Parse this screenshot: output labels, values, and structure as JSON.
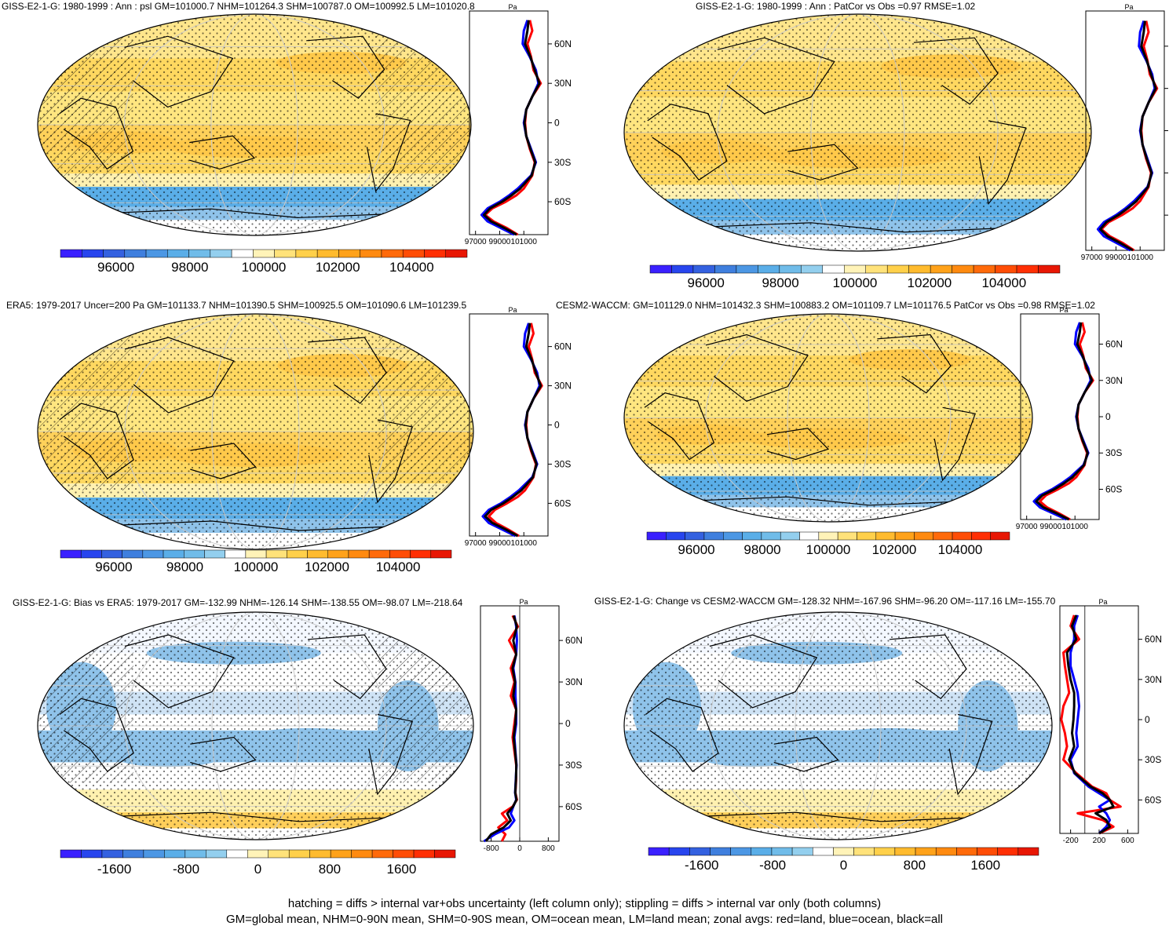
{
  "figure": {
    "notes": [
      "hatching = diffs > internal var+obs uncertainty (left column only); stippling = diffs > internal var only (both columns)",
      "GM=global mean, NHM=0-90N mean, SHM=0-90S mean, OM=ocean mean, LM=land mean; zonal avgs: red=land, blue=ocean, black=all"
    ],
    "profile_unit": "Pa"
  },
  "chart_data": [
    {
      "type": "heatmap",
      "title": "GISS-E2-1-G: 1980-1999 : Ann : psl GM=101000.7 NHM=101264.3 SHM=100787.0 OM=100992.5 LM=101020.8",
      "colorbar_ticks": [
        "96000",
        "98000",
        "100000",
        "102000",
        "104000"
      ],
      "colorbar_range": [
        94500,
        105500
      ],
      "hatching": true,
      "stippling": true,
      "zonal_profile": {
        "ylabels": [
          "60N",
          "30N",
          "0",
          "30S",
          "60S"
        ],
        "xlabels": [
          "97000",
          "99000",
          "101000"
        ],
        "xlim": [
          96500,
          103000
        ],
        "lat": [
          78,
          70,
          60,
          50,
          40,
          30,
          20,
          10,
          0,
          -10,
          -20,
          -30,
          -40,
          -50,
          -55,
          -60,
          -65,
          -70,
          -75,
          -80,
          -85
        ],
        "land": [
          101500,
          101700,
          101300,
          101600,
          101800,
          102400,
          101700,
          101200,
          101100,
          101200,
          101500,
          101900,
          101700,
          101000,
          100400,
          99500,
          98400,
          97800,
          98500,
          99600,
          100500
        ],
        "ocean": [
          101300,
          101000,
          100900,
          101500,
          102000,
          102200,
          101700,
          101200,
          101000,
          101200,
          101600,
          102000,
          101600,
          100500,
          99800,
          99000,
          98000,
          97500,
          98000,
          99100,
          100200
        ],
        "all": [
          101400,
          101300,
          101100,
          101550,
          101900,
          102300,
          101700,
          101200,
          101050,
          101200,
          101550,
          101950,
          101650,
          100700,
          100000,
          99200,
          98200,
          97700,
          98300,
          99400,
          100400
        ]
      }
    },
    {
      "type": "heatmap",
      "title": "GISS-E2-1-G: 1980-1999 : Ann : PatCor vs Obs =0.97 RMSE=1.02",
      "colorbar_ticks": [
        "96000",
        "98000",
        "100000",
        "102000",
        "104000"
      ],
      "colorbar_range": [
        94500,
        105500
      ],
      "hatching": false,
      "stippling": true,
      "zonal_profile": {
        "ylabels": [],
        "xlabels": [
          "97000",
          "99000",
          "101000"
        ],
        "xlim": [
          96500,
          103000
        ],
        "lat": [
          78,
          70,
          60,
          50,
          40,
          30,
          20,
          10,
          0,
          -10,
          -20,
          -30,
          -40,
          -50,
          -55,
          -60,
          -65,
          -70,
          -75,
          -80,
          -85
        ],
        "land": [
          101500,
          101700,
          101300,
          101600,
          101800,
          102400,
          101700,
          101200,
          101100,
          101200,
          101500,
          101900,
          101700,
          101000,
          100400,
          99500,
          98400,
          97800,
          98500,
          99600,
          100500
        ],
        "ocean": [
          101300,
          101000,
          100900,
          101500,
          102000,
          102200,
          101700,
          101200,
          101000,
          101200,
          101600,
          102000,
          101600,
          100500,
          99800,
          99000,
          98000,
          97500,
          98000,
          99100,
          100200
        ],
        "all": [
          101400,
          101300,
          101100,
          101550,
          101900,
          102300,
          101700,
          101200,
          101050,
          101200,
          101550,
          101950,
          101650,
          100700,
          100000,
          99200,
          98200,
          97700,
          98300,
          99400,
          100400
        ]
      }
    },
    {
      "type": "heatmap",
      "title": "ERA5: 1979-2017 Uncer=200 Pa GM=101133.7 NHM=101390.5 SHM=100925.5 OM=101090.6 LM=101239.5",
      "colorbar_ticks": [
        "96000",
        "98000",
        "100000",
        "102000",
        "104000"
      ],
      "colorbar_range": [
        94500,
        105500
      ],
      "hatching": true,
      "stippling": true,
      "zonal_profile": {
        "ylabels": [
          "60N",
          "30N",
          "0",
          "30S",
          "60S"
        ],
        "xlabels": [
          "97000",
          "99000",
          "101000"
        ],
        "xlim": [
          96500,
          103000
        ],
        "lat": [
          78,
          70,
          60,
          50,
          40,
          30,
          20,
          10,
          0,
          -10,
          -20,
          -30,
          -40,
          -50,
          -55,
          -60,
          -65,
          -70,
          -75,
          -80,
          -85
        ],
        "land": [
          101600,
          101800,
          101400,
          101700,
          101900,
          102500,
          101800,
          101300,
          101200,
          101300,
          101600,
          102000,
          101800,
          101100,
          100500,
          99600,
          98600,
          98100,
          98700,
          99700,
          100600
        ],
        "ocean": [
          101400,
          101100,
          101000,
          101600,
          102100,
          102300,
          101800,
          101300,
          101100,
          101300,
          101700,
          102100,
          101700,
          100600,
          99900,
          99100,
          98100,
          97600,
          98100,
          99200,
          100300
        ],
        "all": [
          101500,
          101400,
          101200,
          101650,
          102000,
          102400,
          101800,
          101300,
          101150,
          101300,
          101650,
          102050,
          101750,
          100800,
          100100,
          99300,
          98300,
          97800,
          98400,
          99500,
          100500
        ]
      }
    },
    {
      "type": "heatmap",
      "title": "CESM2-WACCM: GM=101129.0 NHM=101432.3 SHM=100883.2 OM=101109.7 LM=101176.5 PatCor vs Obs =0.98 RMSE=1.02",
      "colorbar_ticks": [
        "96000",
        "98000",
        "100000",
        "102000",
        "104000"
      ],
      "colorbar_range": [
        94500,
        105500
      ],
      "hatching": false,
      "stippling": true,
      "zonal_profile": {
        "ylabels": [
          "60N",
          "30N",
          "0",
          "30S",
          "60S"
        ],
        "xlabels": [
          "97000",
          "99000",
          "101000"
        ],
        "xlim": [
          96500,
          103000
        ],
        "lat": [
          78,
          70,
          60,
          50,
          40,
          30,
          20,
          10,
          0,
          -10,
          -20,
          -30,
          -40,
          -50,
          -55,
          -60,
          -65,
          -70,
          -75,
          -80,
          -85
        ],
        "land": [
          101600,
          101800,
          101400,
          101700,
          101900,
          102500,
          101800,
          101300,
          101200,
          101300,
          101600,
          102000,
          101800,
          101100,
          100500,
          99600,
          98600,
          98100,
          98700,
          99700,
          100600
        ],
        "ocean": [
          101400,
          101100,
          101000,
          101600,
          102100,
          102300,
          101800,
          101300,
          101100,
          101300,
          101700,
          102100,
          101700,
          100600,
          99900,
          99100,
          98100,
          97600,
          98100,
          99200,
          100300
        ],
        "all": [
          101500,
          101400,
          101200,
          101650,
          102000,
          102400,
          101800,
          101300,
          101150,
          101300,
          101650,
          102050,
          101750,
          100800,
          100100,
          99300,
          98300,
          97800,
          98400,
          99500,
          100500
        ]
      }
    },
    {
      "type": "heatmap",
      "title": "GISS-E2-1-G: Bias vs ERA5: 1979-2017 GM=-132.99 NHM=-126.14 SHM=-138.55 OM=-98.07 LM=-218.64",
      "colorbar_ticks": [
        "-1600",
        "-800",
        "0",
        "800",
        "1600"
      ],
      "colorbar_range": [
        -2200,
        2200
      ],
      "hatching": true,
      "stippling": true,
      "zonal_profile": {
        "ylabels": [
          "60N",
          "30N",
          "0",
          "30S",
          "60S"
        ],
        "xlabels": [
          "-800",
          "0",
          "800"
        ],
        "xlim": [
          -1100,
          1100
        ],
        "lat": [
          78,
          70,
          60,
          50,
          40,
          30,
          20,
          10,
          0,
          -10,
          -20,
          -30,
          -40,
          -50,
          -55,
          -60,
          -65,
          -70,
          -75,
          -80,
          -85
        ],
        "land": [
          -200,
          -50,
          -300,
          -100,
          -250,
          -150,
          -250,
          -100,
          -150,
          -200,
          -150,
          -100,
          -100,
          -120,
          -80,
          -200,
          -500,
          -350,
          -600,
          -400,
          -500
        ],
        "ocean": [
          -150,
          -100,
          -80,
          -100,
          -180,
          -120,
          -120,
          -100,
          -100,
          -150,
          -120,
          -90,
          -110,
          -130,
          -100,
          -180,
          -250,
          -150,
          -300,
          -700,
          -1000
        ],
        "all": [
          -170,
          -80,
          -180,
          -100,
          -200,
          -130,
          -180,
          -100,
          -120,
          -170,
          -130,
          -95,
          -105,
          -125,
          -90,
          -190,
          -350,
          -250,
          -450,
          -800,
          -950
        ]
      }
    },
    {
      "type": "heatmap",
      "title": "GISS-E2-1-G: Change vs CESM2-WACCM GM=-128.32 NHM=-167.96 SHM=-96.20 OM=-117.16 LM=-155.70",
      "colorbar_ticks": [
        "-1600",
        "-800",
        "0",
        "800",
        "1600"
      ],
      "colorbar_range": [
        -2200,
        2200
      ],
      "hatching": false,
      "stippling": true,
      "zonal_profile": {
        "ylabels": [
          "60N",
          "30N",
          "0",
          "30S",
          "60S"
        ],
        "xlabels": [
          "-200",
          "200",
          "600"
        ],
        "xlim": [
          -350,
          750
        ],
        "lat": [
          78,
          70,
          60,
          50,
          40,
          30,
          20,
          10,
          0,
          -10,
          -20,
          -30,
          -40,
          -50,
          -55,
          -60,
          -65,
          -70,
          -75,
          -80,
          -85
        ],
        "land": [
          -150,
          -200,
          -80,
          -300,
          -280,
          -250,
          -220,
          -300,
          -330,
          -280,
          -250,
          -300,
          -120,
          100,
          300,
          350,
          500,
          -100,
          250,
          400,
          200
        ],
        "ocean": [
          -100,
          -150,
          -150,
          -200,
          -200,
          -150,
          -100,
          -80,
          -100,
          -120,
          -100,
          -200,
          -150,
          50,
          200,
          350,
          200,
          300,
          350,
          300,
          200
        ],
        "all": [
          -120,
          -180,
          -120,
          -250,
          -230,
          -200,
          -150,
          -150,
          -160,
          -180,
          -150,
          -220,
          -140,
          80,
          250,
          350,
          400,
          150,
          300,
          350,
          200
        ]
      }
    }
  ]
}
